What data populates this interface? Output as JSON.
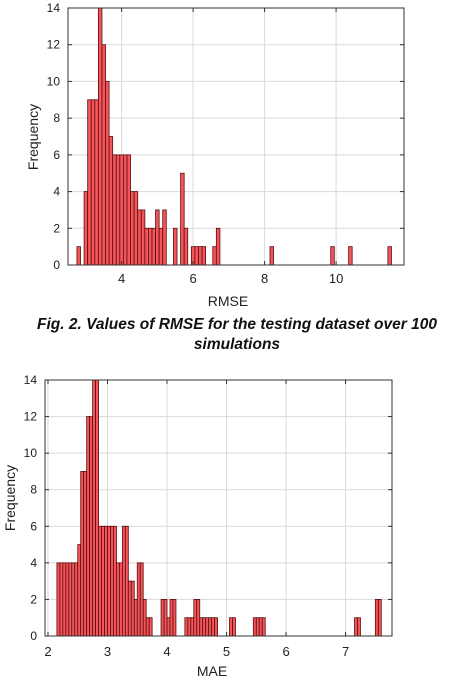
{
  "caption": {
    "line1": "Fig. 2. Values of RMSE for the testing dataset over 100",
    "line2": "simulations"
  },
  "colors": {
    "bar_fill": "#f4555a",
    "bar_edge": "#5a0d0d",
    "grid": "#d9d9d9"
  },
  "chart_data": [
    {
      "type": "bar",
      "title": "",
      "xlabel": "RMSE",
      "ylabel": "Frequency",
      "xlim": [
        2.5,
        11.9
      ],
      "ylim": [
        0,
        14
      ],
      "xticks": [
        4,
        6,
        8,
        10
      ],
      "yticks": [
        0,
        2,
        4,
        6,
        8,
        10,
        12,
        14
      ],
      "grid": true,
      "bin_width": 0.1,
      "bins": [
        {
          "x": 2.8,
          "y": 1
        },
        {
          "x": 2.9,
          "y": 0
        },
        {
          "x": 3.0,
          "y": 4
        },
        {
          "x": 3.1,
          "y": 9
        },
        {
          "x": 3.2,
          "y": 9
        },
        {
          "x": 3.3,
          "y": 9
        },
        {
          "x": 3.4,
          "y": 14
        },
        {
          "x": 3.5,
          "y": 12
        },
        {
          "x": 3.6,
          "y": 10
        },
        {
          "x": 3.7,
          "y": 7
        },
        {
          "x": 3.8,
          "y": 6
        },
        {
          "x": 3.9,
          "y": 6
        },
        {
          "x": 4.0,
          "y": 6
        },
        {
          "x": 4.1,
          "y": 6
        },
        {
          "x": 4.2,
          "y": 6
        },
        {
          "x": 4.3,
          "y": 4
        },
        {
          "x": 4.4,
          "y": 4
        },
        {
          "x": 4.5,
          "y": 3
        },
        {
          "x": 4.6,
          "y": 3
        },
        {
          "x": 4.7,
          "y": 2
        },
        {
          "x": 4.8,
          "y": 2
        },
        {
          "x": 4.9,
          "y": 2
        },
        {
          "x": 5.0,
          "y": 3
        },
        {
          "x": 5.1,
          "y": 2
        },
        {
          "x": 5.2,
          "y": 3
        },
        {
          "x": 5.3,
          "y": 0
        },
        {
          "x": 5.4,
          "y": 0
        },
        {
          "x": 5.5,
          "y": 2
        },
        {
          "x": 5.6,
          "y": 0
        },
        {
          "x": 5.7,
          "y": 5
        },
        {
          "x": 5.8,
          "y": 2
        },
        {
          "x": 5.9,
          "y": 0
        },
        {
          "x": 6.0,
          "y": 1
        },
        {
          "x": 6.1,
          "y": 1
        },
        {
          "x": 6.2,
          "y": 1
        },
        {
          "x": 6.3,
          "y": 1
        },
        {
          "x": 6.4,
          "y": 0
        },
        {
          "x": 6.5,
          "y": 0
        },
        {
          "x": 6.6,
          "y": 1
        },
        {
          "x": 6.7,
          "y": 2
        },
        {
          "x": 8.2,
          "y": 1
        },
        {
          "x": 9.9,
          "y": 1
        },
        {
          "x": 10.4,
          "y": 1
        },
        {
          "x": 11.5,
          "y": 1
        }
      ]
    },
    {
      "type": "bar",
      "title": "",
      "xlabel": "MAE",
      "ylabel": "Frequency",
      "xlim": [
        1.95,
        7.78
      ],
      "ylim": [
        0,
        14
      ],
      "xticks": [
        2,
        3,
        4,
        5,
        6,
        7
      ],
      "yticks": [
        0,
        2,
        4,
        6,
        8,
        10,
        12,
        14
      ],
      "grid": true,
      "bin_width": 0.05,
      "bins": [
        {
          "x": 2.175,
          "y": 4
        },
        {
          "x": 2.225,
          "y": 4
        },
        {
          "x": 2.275,
          "y": 4
        },
        {
          "x": 2.325,
          "y": 4
        },
        {
          "x": 2.375,
          "y": 4
        },
        {
          "x": 2.425,
          "y": 4
        },
        {
          "x": 2.475,
          "y": 4
        },
        {
          "x": 2.525,
          "y": 5
        },
        {
          "x": 2.575,
          "y": 9
        },
        {
          "x": 2.625,
          "y": 9
        },
        {
          "x": 2.675,
          "y": 12
        },
        {
          "x": 2.725,
          "y": 12
        },
        {
          "x": 2.775,
          "y": 14
        },
        {
          "x": 2.825,
          "y": 14
        },
        {
          "x": 2.875,
          "y": 6
        },
        {
          "x": 2.925,
          "y": 6
        },
        {
          "x": 2.975,
          "y": 6
        },
        {
          "x": 3.025,
          "y": 6
        },
        {
          "x": 3.075,
          "y": 6
        },
        {
          "x": 3.125,
          "y": 6
        },
        {
          "x": 3.175,
          "y": 4
        },
        {
          "x": 3.225,
          "y": 4
        },
        {
          "x": 3.275,
          "y": 6
        },
        {
          "x": 3.325,
          "y": 6
        },
        {
          "x": 3.375,
          "y": 3
        },
        {
          "x": 3.425,
          "y": 3
        },
        {
          "x": 3.475,
          "y": 2
        },
        {
          "x": 3.525,
          "y": 4
        },
        {
          "x": 3.575,
          "y": 4
        },
        {
          "x": 3.625,
          "y": 2
        },
        {
          "x": 3.675,
          "y": 1
        },
        {
          "x": 3.725,
          "y": 1
        },
        {
          "x": 3.775,
          "y": 0
        },
        {
          "x": 3.825,
          "y": 0
        },
        {
          "x": 3.875,
          "y": 0
        },
        {
          "x": 3.925,
          "y": 2
        },
        {
          "x": 3.975,
          "y": 2
        },
        {
          "x": 4.025,
          "y": 1
        },
        {
          "x": 4.075,
          "y": 2
        },
        {
          "x": 4.125,
          "y": 2
        },
        {
          "x": 4.175,
          "y": 0
        },
        {
          "x": 4.225,
          "y": 0
        },
        {
          "x": 4.275,
          "y": 0
        },
        {
          "x": 4.325,
          "y": 1
        },
        {
          "x": 4.375,
          "y": 1
        },
        {
          "x": 4.425,
          "y": 1
        },
        {
          "x": 4.475,
          "y": 2
        },
        {
          "x": 4.525,
          "y": 2
        },
        {
          "x": 4.575,
          "y": 1
        },
        {
          "x": 4.625,
          "y": 1
        },
        {
          "x": 4.675,
          "y": 1
        },
        {
          "x": 4.725,
          "y": 1
        },
        {
          "x": 4.775,
          "y": 1
        },
        {
          "x": 4.825,
          "y": 1
        },
        {
          "x": 5.075,
          "y": 1
        },
        {
          "x": 5.125,
          "y": 1
        },
        {
          "x": 5.475,
          "y": 1
        },
        {
          "x": 5.525,
          "y": 1
        },
        {
          "x": 5.575,
          "y": 1
        },
        {
          "x": 5.625,
          "y": 1
        },
        {
          "x": 7.175,
          "y": 1
        },
        {
          "x": 7.225,
          "y": 1
        },
        {
          "x": 7.525,
          "y": 2
        },
        {
          "x": 7.575,
          "y": 2
        }
      ]
    }
  ]
}
